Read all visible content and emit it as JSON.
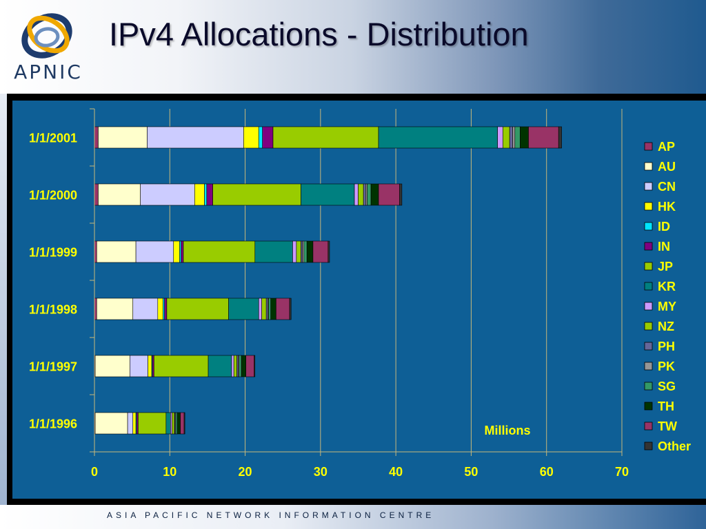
{
  "header": {
    "title": "IPv4 Allocations - Distribution",
    "logo_text": "APNIC"
  },
  "footer": {
    "text": "ASIA PACIFIC NETWORK INFORMATION CENTRE"
  },
  "colors": {
    "panel_background": "#0e5f96",
    "axis_text": "#ffff00",
    "grid": "#c8b87a"
  },
  "chart_data": {
    "type": "bar",
    "orientation": "horizontal",
    "stacked": true,
    "categories": [
      "1/1/2001",
      "1/1/2000",
      "1/1/1999",
      "1/1/1998",
      "1/1/1997",
      "1/1/1996"
    ],
    "xlim": [
      0,
      70
    ],
    "x_ticks": [
      "0",
      "10",
      "20",
      "30",
      "40",
      "50",
      "60",
      "70"
    ],
    "xlabel": "Millions",
    "grid": "vertical",
    "legend_position": "right",
    "series": [
      {
        "name": "AP",
        "color": "#993366",
        "values": [
          0.5,
          0.5,
          0.3,
          0.3,
          0.1,
          0.1
        ]
      },
      {
        "name": "AU",
        "color": "#ffffcc",
        "values": [
          6.5,
          5.6,
          5.2,
          4.8,
          4.6,
          4.3
        ]
      },
      {
        "name": "CN",
        "color": "#ccccff",
        "values": [
          12.8,
          7.2,
          5.0,
          3.3,
          2.4,
          0.7
        ]
      },
      {
        "name": "HK",
        "color": "#ffff00",
        "values": [
          2.0,
          1.3,
          0.8,
          0.7,
          0.5,
          0.4
        ]
      },
      {
        "name": "ID",
        "color": "#00e5ff",
        "values": [
          0.5,
          0.3,
          0.2,
          0.2,
          0.1,
          0.1
        ]
      },
      {
        "name": "IN",
        "color": "#800080",
        "values": [
          1.4,
          0.8,
          0.3,
          0.3,
          0.2,
          0.2
        ]
      },
      {
        "name": "JP",
        "color": "#99cc00",
        "values": [
          14.0,
          11.7,
          9.5,
          8.2,
          7.2,
          3.7
        ]
      },
      {
        "name": "KR",
        "color": "#008080",
        "values": [
          15.8,
          7.1,
          5.0,
          4.0,
          3.1,
          0.6
        ]
      },
      {
        "name": "MY",
        "color": "#cc99ff",
        "values": [
          0.7,
          0.5,
          0.5,
          0.4,
          0.3,
          0.2
        ]
      },
      {
        "name": "NZ",
        "color": "#99cc00",
        "values": [
          0.9,
          0.7,
          0.6,
          0.6,
          0.4,
          0.3
        ]
      },
      {
        "name": "PH",
        "color": "#666699",
        "values": [
          0.4,
          0.3,
          0.2,
          0.2,
          0.2,
          0.1
        ]
      },
      {
        "name": "PK",
        "color": "#969696",
        "values": [
          0.3,
          0.2,
          0.2,
          0.1,
          0.1,
          0.1
        ]
      },
      {
        "name": "SG",
        "color": "#339966",
        "values": [
          0.7,
          0.5,
          0.4,
          0.3,
          0.3,
          0.2
        ]
      },
      {
        "name": "TH",
        "color": "#003300",
        "values": [
          1.1,
          1.0,
          0.8,
          0.7,
          0.6,
          0.4
        ]
      },
      {
        "name": "TW",
        "color": "#993366",
        "values": [
          4.0,
          2.8,
          2.0,
          1.8,
          1.1,
          0.5
        ]
      },
      {
        "name": "Other",
        "color": "#333333",
        "values": [
          0.4,
          0.3,
          0.2,
          0.2,
          0.1,
          0.1
        ]
      }
    ]
  }
}
